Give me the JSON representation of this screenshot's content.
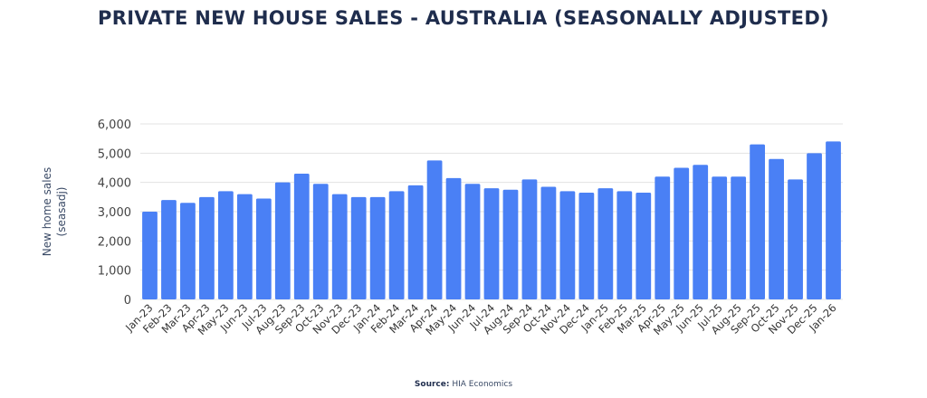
{
  "chart_data": {
    "type": "bar",
    "title": "PRIVATE NEW HOUSE SALES - AUSTRALIA (SEASONALLY ADJUSTED)",
    "ylabel_line1": "New home sales",
    "ylabel_line2": "(seasadj)",
    "xlabel": "",
    "ylim": [
      0,
      6000
    ],
    "yticks": [
      "0",
      "1,000",
      "2,000",
      "3,000",
      "4,000",
      "5,000",
      "6,000"
    ],
    "grid": true,
    "color": "#4a80f5",
    "categories": [
      "Jan-23",
      "Feb-23",
      "Mar-23",
      "Apr-23",
      "May-23",
      "Jun-23",
      "Jul-23",
      "Aug-23",
      "Sep-23",
      "Oct-23",
      "Nov-23",
      "Dec-23",
      "Jan-24",
      "Feb-24",
      "Mar-24",
      "Apr-24",
      "May-24",
      "Jun-24",
      "Jul-24",
      "Aug-24",
      "Sep-24",
      "Oct-24",
      "Nov-24",
      "Dec-24",
      "Jan-25",
      "Feb-25",
      "Mar-25",
      "Apr-25",
      "May-25",
      "Jun-25",
      "Jul-25",
      "Aug-25",
      "Sep-25",
      "Oct-25",
      "Nov-25",
      "Dec-25",
      "Jan-26"
    ],
    "values": [
      3000,
      3400,
      3300,
      3500,
      3700,
      3600,
      3450,
      4000,
      4300,
      3950,
      3600,
      3500,
      3500,
      3700,
      3900,
      4750,
      4150,
      3950,
      3800,
      3750,
      4100,
      3850,
      3700,
      3650,
      3800,
      3700,
      3650,
      4200,
      4500,
      4600,
      4200,
      4200,
      5300,
      4800,
      4100,
      5000,
      5400
    ]
  },
  "source": {
    "label": "Source:",
    "text": "HIA Economics"
  }
}
